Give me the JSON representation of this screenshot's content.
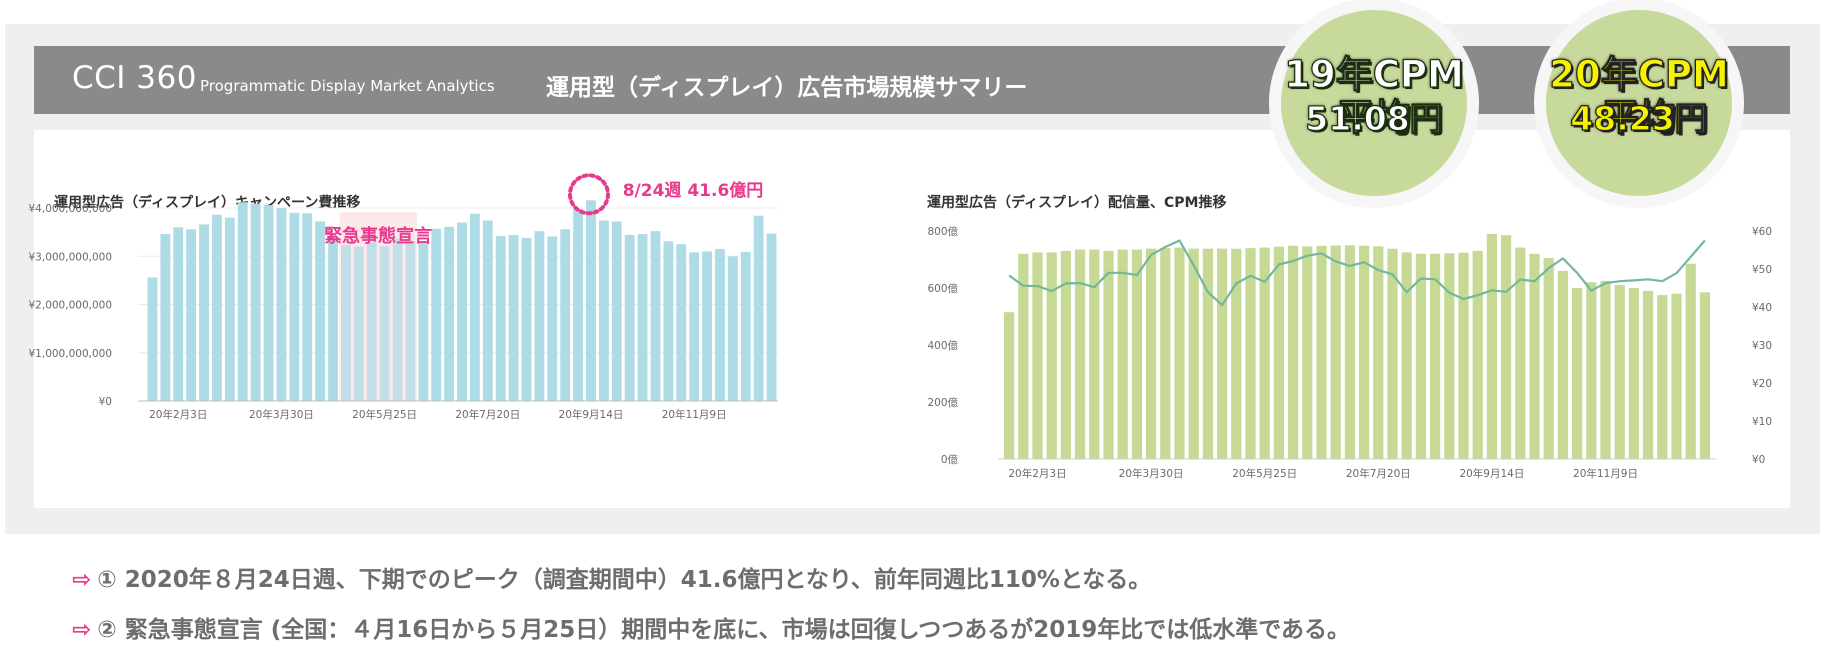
{
  "header": {
    "brand": "CCI 360",
    "subtitle": "Programmatic Display Market Analytics",
    "title": "運用型（ディスプレイ）広告市場規模サマリー"
  },
  "cpm_badges": [
    {
      "line1": "19年CPM平均",
      "line2": "51.08円"
    },
    {
      "line1": "20年CPM平均",
      "line2": "48.23円"
    }
  ],
  "notes": [
    {
      "arrow": "⇨",
      "text": "① 2020年８月24日週、下期でのピーク（調査期間中）41.6億円となり、前年同週比110%となる。"
    },
    {
      "arrow": "⇨",
      "text": "② 緊急事態宣言 (全国：４月16日から５月25日）期間中を底に、市場は回復しつつあるが2019年比では低水準である。"
    }
  ],
  "colors": {
    "bar_left": "#addbe6",
    "bar_right": "#c6da96",
    "line": "#74b79a",
    "accent": "#e8398c",
    "shade": "#fde9ea"
  },
  "chart_data": [
    {
      "type": "bar",
      "title": "運用型広告（ディスプレイ）キャンペーン費推移",
      "x_ticks": [
        "20年2月3日",
        "20年3月30日",
        "20年5月25日",
        "20年7月20日",
        "20年9月14日",
        "20年11月9日"
      ],
      "y_ticks": [
        "¥4,000,000,000",
        "¥3,000,000,000",
        "¥2,000,000,000",
        "¥1,000,000,000",
        "¥0"
      ],
      "ylim": [
        0,
        4200000000
      ],
      "values": [
        2560000000,
        3460000000,
        3600000000,
        3560000000,
        3660000000,
        3860000000,
        3800000000,
        4120000000,
        4090000000,
        4060000000,
        4000000000,
        3900000000,
        3890000000,
        3720000000,
        3410000000,
        3230000000,
        3200000000,
        3290000000,
        3210000000,
        3370000000,
        3320000000,
        3280000000,
        3570000000,
        3610000000,
        3700000000,
        3880000000,
        3740000000,
        3420000000,
        3440000000,
        3380000000,
        3520000000,
        3410000000,
        3560000000,
        3980000000,
        4160000000,
        3740000000,
        3720000000,
        3440000000,
        3460000000,
        3520000000,
        3310000000,
        3250000000,
        3080000000,
        3100000000,
        3150000000,
        3000000000,
        3090000000,
        3840000000,
        3470000000
      ],
      "highlight_bar_index": 34,
      "shaded_range": [
        15,
        20
      ],
      "annotations": {
        "shaded_label": "緊急事態宣言",
        "peak_label": "8/24週 41.6億円"
      }
    },
    {
      "type": "bar+line",
      "title": "運用型広告（ディスプレイ）配信量、CPM推移",
      "x_ticks": [
        "20年2月3日",
        "20年3月30日",
        "20年5月25日",
        "20年7月20日",
        "20年9月14日",
        "20年11月9日"
      ],
      "y_left_ticks": [
        "800億",
        "600億",
        "400億",
        "200億",
        "0億"
      ],
      "y_right_ticks": [
        "¥60",
        "¥50",
        "¥40",
        "¥30",
        "¥20",
        "¥10",
        "¥0"
      ],
      "ylim_left": [
        0,
        800
      ],
      "ylim_right": [
        0,
        60
      ],
      "volume": [
        515,
        720,
        725,
        725,
        730,
        735,
        735,
        730,
        735,
        735,
        738,
        740,
        742,
        738,
        738,
        738,
        738,
        740,
        742,
        745,
        748,
        746,
        748,
        749,
        750,
        748,
        746,
        738,
        725,
        720,
        720,
        722,
        724,
        730,
        790,
        785,
        742,
        720,
        705,
        660,
        600,
        620,
        625,
        610,
        600,
        590,
        575,
        580,
        685,
        585
      ],
      "cpm": [
        48.3,
        45.6,
        45.5,
        44.2,
        46.2,
        46.3,
        45.2,
        49.0,
        49.0,
        48.4,
        53.7,
        55.8,
        57.5,
        51.0,
        43.9,
        40.5,
        46.2,
        48.2,
        46.6,
        51.2,
        52.1,
        53.5,
        54.1,
        52.0,
        50.8,
        51.8,
        49.7,
        48.6,
        43.9,
        47.5,
        47.3,
        43.8,
        42.1,
        43.1,
        44.4,
        44.0,
        47.2,
        46.8,
        50.2,
        52.8,
        49.0,
        44.3,
        46.3,
        46.8,
        47.0,
        47.3,
        46.8,
        48.9,
        53.2,
        57.5
      ]
    }
  ]
}
